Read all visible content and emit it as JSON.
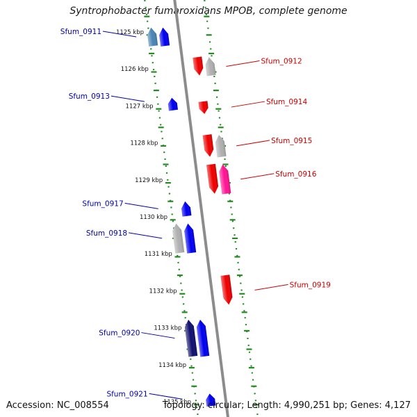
{
  "header": {
    "title": "Syntrophobacter fumaroxidans MPOB, complete genome"
  },
  "footer": {
    "accession": "Accession: NC_008554",
    "stats": "Topology: circular; Length: 4,990,251 bp; Genes: 4,127"
  },
  "ticks": [
    {
      "kbp": 1125,
      "label": "1125 kbp"
    },
    {
      "kbp": 1126,
      "label": "1126 kbp"
    },
    {
      "kbp": 1127,
      "label": "1127 kbp"
    },
    {
      "kbp": 1128,
      "label": "1128 kbp"
    },
    {
      "kbp": 1129,
      "label": "1129 kbp"
    },
    {
      "kbp": 1130,
      "label": "1130 kbp"
    },
    {
      "kbp": 1131,
      "label": "1131 kbp"
    },
    {
      "kbp": 1132,
      "label": "1132 kbp"
    },
    {
      "kbp": 1133,
      "label": "1133 kbp"
    },
    {
      "kbp": 1134,
      "label": "1134 kbp"
    },
    {
      "kbp": 1135,
      "label": "1135 kbp"
    }
  ],
  "genes": [
    {
      "name": "Sfum_0911",
      "strand": "reverse",
      "start_kbp": 1124.9,
      "end_kbp": 1125.4,
      "color": "#0000ee",
      "companion": "#4a84b5"
    },
    {
      "name": "Sfum_0912",
      "strand": "forward",
      "start_kbp": 1125.7,
      "end_kbp": 1126.2,
      "color": "#ee0000",
      "companion": "#b0b0b0"
    },
    {
      "name": "Sfum_0913",
      "strand": "reverse",
      "start_kbp": 1126.8,
      "end_kbp": 1127.0,
      "color": "#0000ee"
    },
    {
      "name": "Sfum_0914",
      "strand": "forward",
      "start_kbp": 1126.9,
      "end_kbp": 1127.2,
      "color": "#ee0000"
    },
    {
      "name": "Sfum_0915",
      "strand": "forward",
      "start_kbp": 1127.8,
      "end_kbp": 1128.4,
      "color": "#ee0000",
      "companion": "#b0b0b0"
    },
    {
      "name": "Sfum_0916",
      "strand": "forward",
      "start_kbp": 1128.6,
      "end_kbp": 1129.4,
      "color": "#ee0000",
      "companion": "#ff1493"
    },
    {
      "name": "Sfum_0917",
      "strand": "reverse",
      "start_kbp": 1129.6,
      "end_kbp": 1130.0,
      "color": "#0000ee"
    },
    {
      "name": "Sfum_0918",
      "strand": "reverse",
      "start_kbp": 1130.2,
      "end_kbp": 1131.0,
      "color": "#0000ee",
      "companion": "#b0b0b0"
    },
    {
      "name": "Sfum_0919",
      "strand": "forward",
      "start_kbp": 1131.6,
      "end_kbp": 1132.4,
      "color": "#ee0000"
    },
    {
      "name": "Sfum_0920",
      "strand": "reverse",
      "start_kbp": 1132.8,
      "end_kbp": 1133.8,
      "color": "#0000ee",
      "companion": "#10106e"
    },
    {
      "name": "Sfum_0921",
      "strand": "reverse",
      "start_kbp": 1134.8,
      "end_kbp": 1135.1,
      "color": "#0000ee"
    }
  ],
  "colors": {
    "backbone": "#8c8c8c",
    "tick_track": "#228b22",
    "forward_label": "#cc0000",
    "reverse_label": "#0000aa"
  }
}
